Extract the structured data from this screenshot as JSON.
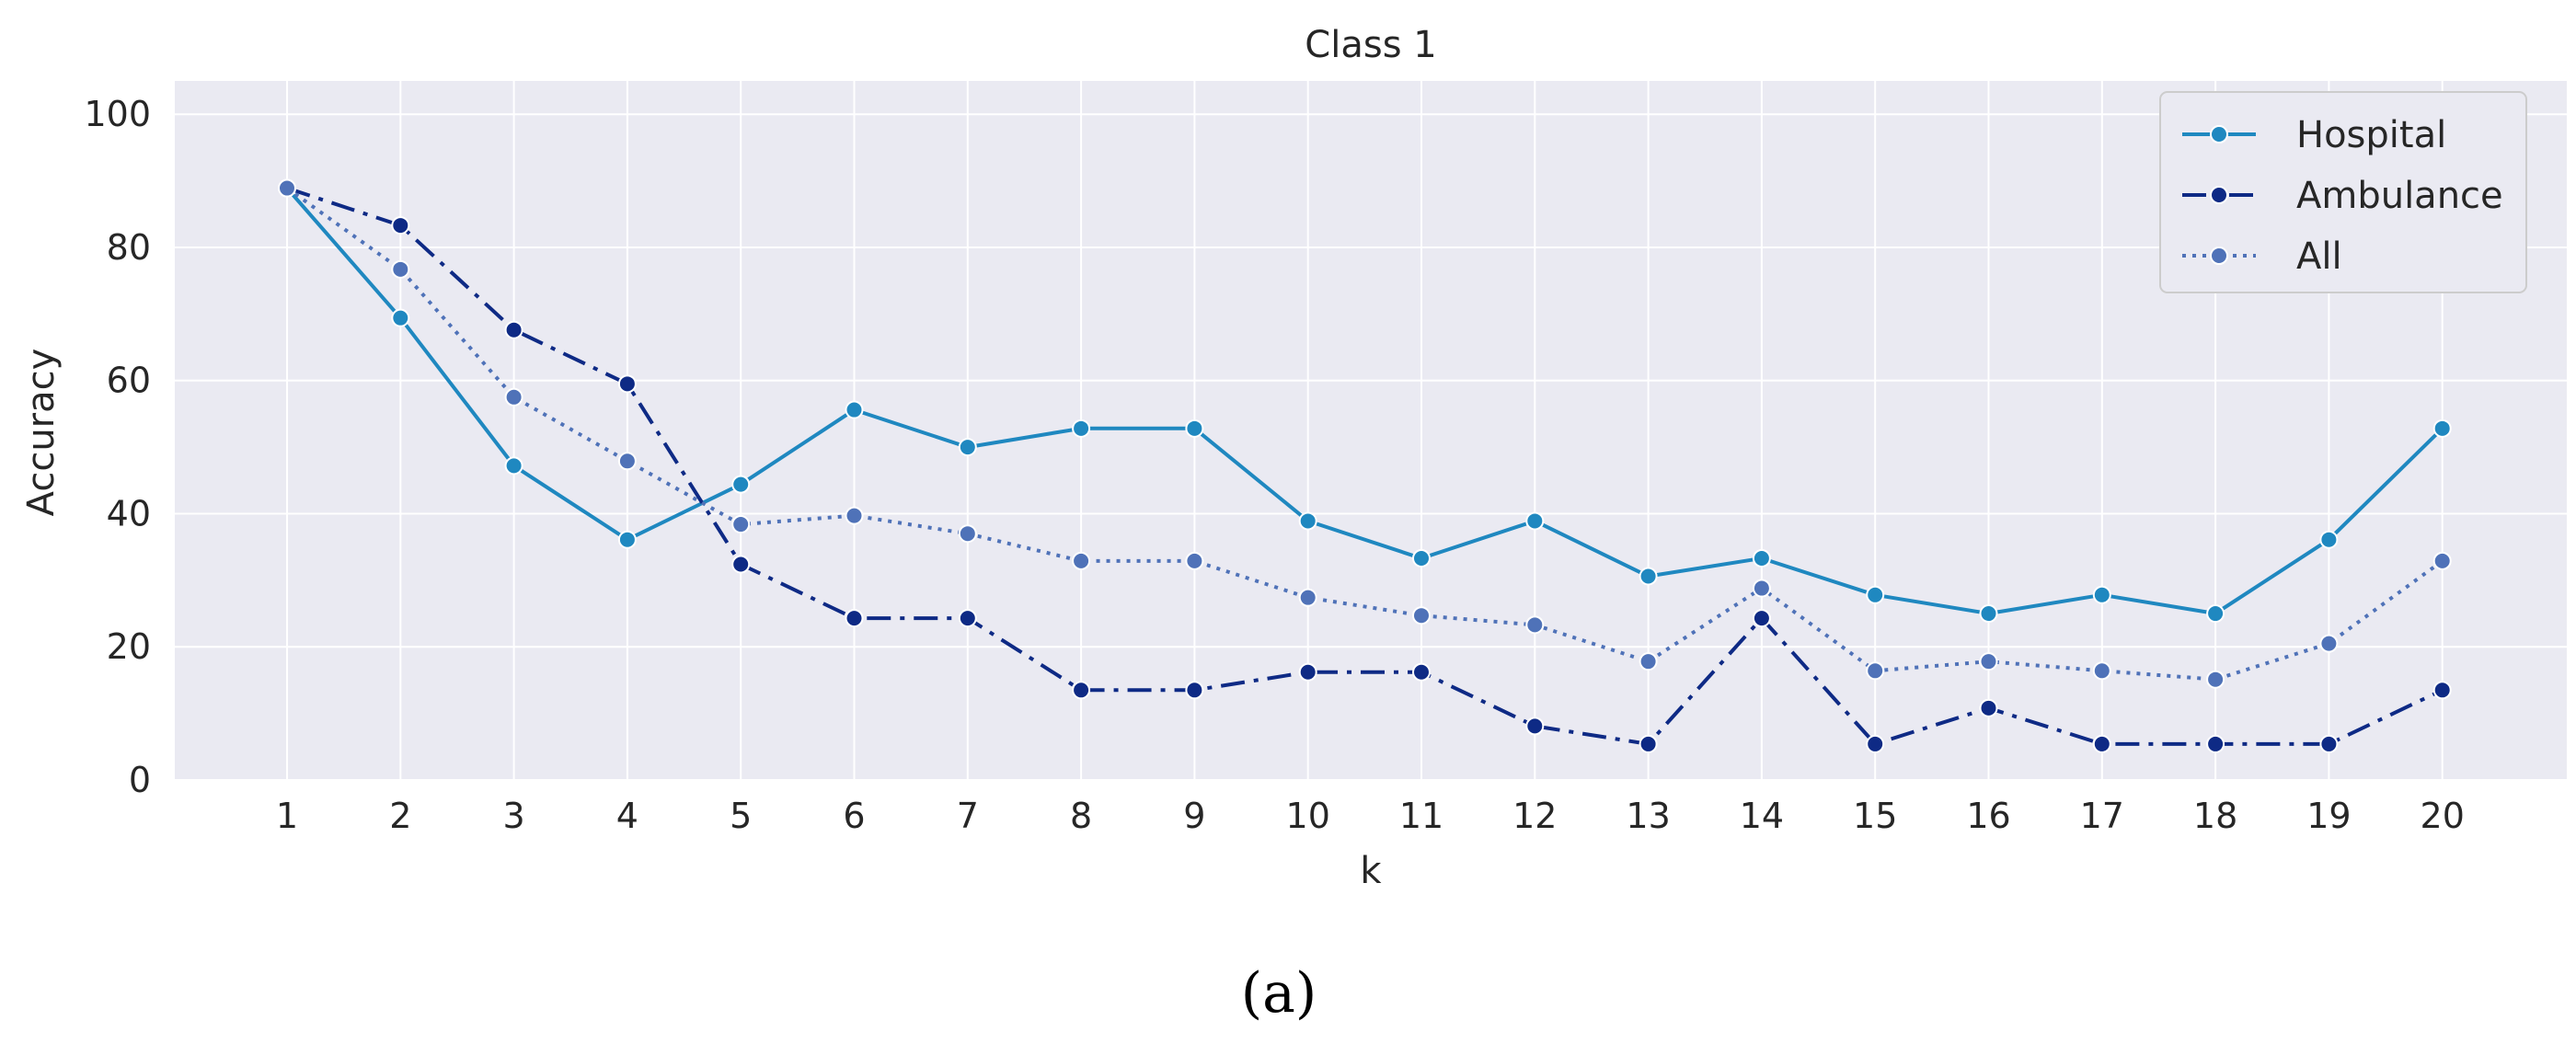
{
  "chart_data": {
    "type": "line",
    "title": "Class 1",
    "xlabel": "k",
    "ylabel": "Accuracy",
    "x": [
      1,
      2,
      3,
      4,
      5,
      6,
      7,
      8,
      9,
      10,
      11,
      12,
      13,
      14,
      15,
      16,
      17,
      18,
      19,
      20
    ],
    "ylim": [
      0,
      105
    ],
    "yticks": [
      0,
      20,
      40,
      60,
      80,
      100
    ],
    "grid": true,
    "legend_position": "top-right",
    "series": [
      {
        "name": "Hospital",
        "line_style": "solid",
        "color": "#1f88c0",
        "values": [
          88.9,
          69.4,
          47.2,
          36.1,
          44.4,
          55.6,
          50.0,
          52.8,
          52.8,
          38.9,
          33.3,
          38.9,
          30.6,
          33.3,
          27.8,
          25.0,
          27.8,
          25.0,
          36.1,
          52.8
        ]
      },
      {
        "name": "Ambulance",
        "line_style": "dashdot",
        "color": "#0e2a85",
        "values": [
          88.9,
          83.3,
          67.6,
          59.5,
          32.4,
          24.3,
          24.3,
          13.5,
          13.5,
          16.2,
          16.2,
          8.1,
          5.4,
          24.3,
          5.4,
          10.8,
          5.4,
          5.4,
          5.4,
          13.5
        ]
      },
      {
        "name": "All",
        "line_style": "dotted",
        "color": "#4f72b8",
        "values": [
          88.9,
          76.7,
          57.5,
          47.9,
          38.4,
          39.7,
          37.0,
          32.9,
          32.9,
          27.4,
          24.7,
          23.3,
          17.8,
          28.8,
          16.4,
          17.8,
          16.4,
          15.1,
          20.5,
          32.9
        ]
      }
    ]
  },
  "caption": "(a)",
  "colors": {
    "plot_background": "#eaeaf2",
    "grid": "#ffffff"
  }
}
